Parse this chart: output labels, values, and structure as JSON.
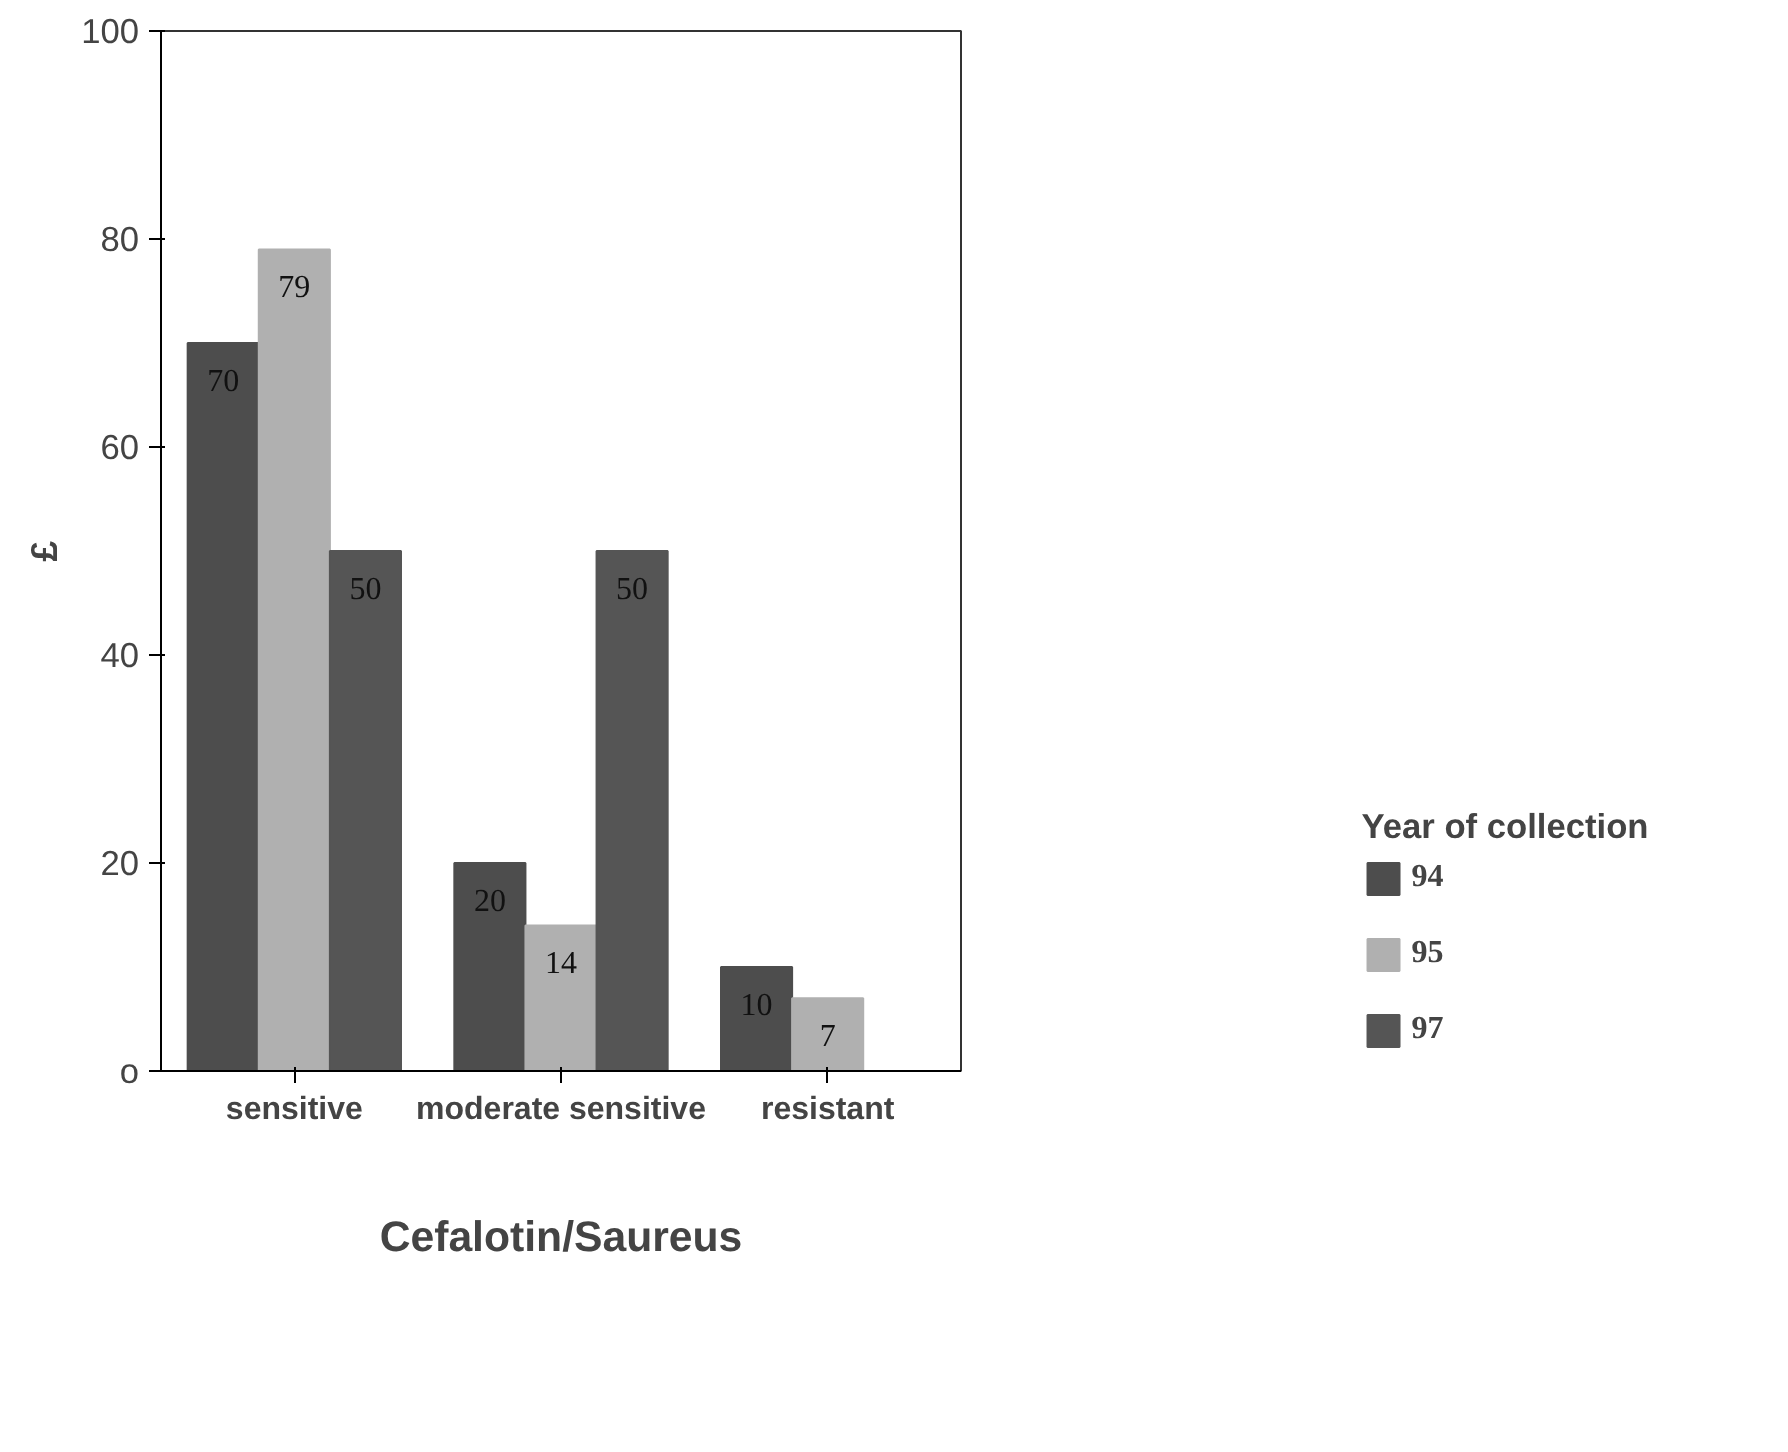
{
  "chart_data": {
    "type": "bar",
    "xlabel": "Cefalotin/Saureus",
    "ylabel": "£",
    "legend_title": "Year of collection",
    "categories": [
      "sensitive",
      "moderate sensitive",
      "resistant"
    ],
    "series": [
      {
        "name": "94",
        "color": "#4d4d4d",
        "values": [
          70,
          20,
          10
        ],
        "value_labels": [
          "70",
          "20",
          "10"
        ]
      },
      {
        "name": "95",
        "color": "#b0b0b0",
        "values": [
          79,
          14,
          7
        ],
        "value_labels": [
          "79",
          "14",
          "7"
        ]
      },
      {
        "name": "97",
        "color": "#555555",
        "values": [
          50,
          50,
          0
        ],
        "value_labels": [
          "50",
          "50",
          null
        ]
      }
    ],
    "ylim": [
      0,
      100
    ],
    "yticks": [
      {
        "value": 0,
        "label": "o"
      },
      20,
      40,
      60,
      80,
      100
    ],
    "legend": "right",
    "grid": false
  }
}
